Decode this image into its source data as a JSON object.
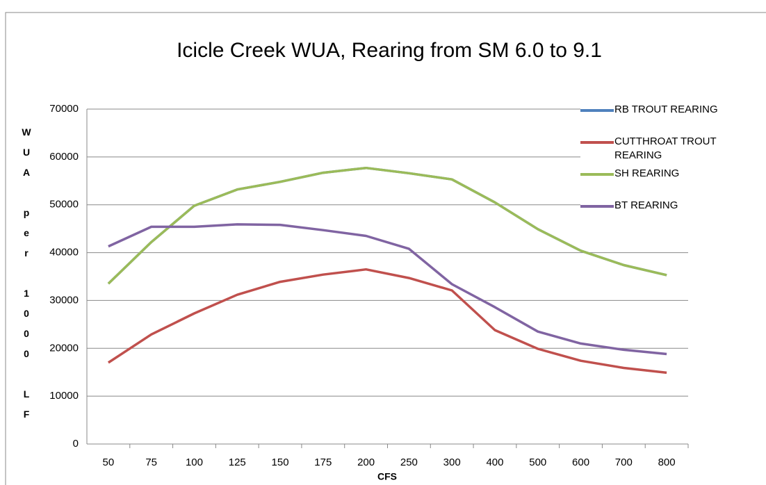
{
  "chart_data": {
    "type": "line",
    "title": "Icicle Creek WUA, Rearing from SM 6.0 to 9.1",
    "y_label": "WUA per 1000 LF",
    "x_label": "CFS",
    "categories": [
      "50",
      "75",
      "100",
      "125",
      "150",
      "175",
      "200",
      "250",
      "300",
      "400",
      "500",
      "600",
      "700",
      "800"
    ],
    "ylim": [
      0,
      70000
    ],
    "yticks": [
      0,
      10000,
      20000,
      30000,
      40000,
      50000,
      60000,
      70000
    ],
    "grid": true,
    "legend": "right",
    "series": [
      {
        "name": "RB TROUT REARING",
        "color": "#4f81bd",
        "values": [
          33500,
          42200,
          49800,
          53200,
          54800,
          56700,
          57700,
          56600,
          55300,
          50500,
          44900,
          40400,
          37400,
          35300
        ]
      },
      {
        "name": "CUTTHROAT TROUT REARING",
        "color": "#c0504d",
        "values": [
          17000,
          22900,
          27300,
          31200,
          33900,
          35400,
          36500,
          34700,
          32100,
          23800,
          19900,
          17400,
          15900,
          14900
        ]
      },
      {
        "name": "SH REARING",
        "color": "#9bbb59",
        "values": [
          33500,
          42200,
          49800,
          53200,
          54800,
          56700,
          57700,
          56600,
          55300,
          50500,
          44900,
          40400,
          37400,
          35300
        ]
      },
      {
        "name": "BT REARING",
        "color": "#8064a2",
        "values": [
          41300,
          45400,
          45400,
          45900,
          45800,
          44700,
          43500,
          40800,
          33400,
          28600,
          23500,
          21000,
          19700,
          18800
        ]
      }
    ]
  }
}
